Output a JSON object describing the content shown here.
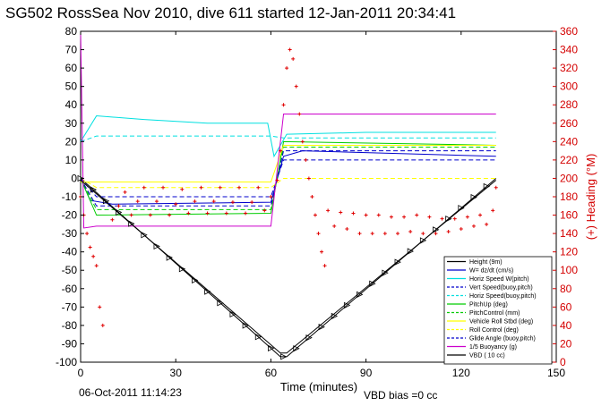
{
  "chart_data": {
    "type": "line",
    "title": "SG502 RossSea Nov 2010, dive 611 started 12-Jan-2011 20:34:41",
    "xlabel": "Time (minutes)",
    "ylabel_right": "(+) Heading (°M)",
    "xlim": [
      0,
      150
    ],
    "ylim_left": [
      -100,
      80
    ],
    "ylim_right": [
      0,
      360
    ],
    "x_ticks": [
      "0",
      "30",
      "60",
      "90",
      "120",
      "150"
    ],
    "y_ticks_left": [
      "80",
      "70",
      "60",
      "50",
      "40",
      "30",
      "20",
      "10",
      "0",
      "-10",
      "-20",
      "-30",
      "-40",
      "-50",
      "-60",
      "-70",
      "-80",
      "-90",
      "-100"
    ],
    "y_ticks_right": [
      "360",
      "340",
      "320",
      "300",
      "280",
      "260",
      "240",
      "220",
      "200",
      "180",
      "160",
      "140",
      "120",
      "100",
      "80",
      "60",
      "40",
      "20",
      "0"
    ],
    "footer_date": "06-Oct-2011 11:14:23",
    "footer_vbd": "VBD bias =0 cc",
    "legend": [
      {
        "label": "Height (9m)",
        "color": "#000000",
        "dash": false
      },
      {
        "label": "W= dz/dt (cm/s)",
        "color": "#0000cc",
        "dash": false
      },
      {
        "label": "Horiz Speed W(pitch)",
        "color": "#00e0e0",
        "dash": false
      },
      {
        "label": "Vert Speed(buoy,pitch)",
        "color": "#0000cc",
        "dash": true
      },
      {
        "label": "Horiz Speed(buoy,pitch)",
        "color": "#00e0e0",
        "dash": true
      },
      {
        "label": "PitchUp (deg)",
        "color": "#00cc00",
        "dash": false
      },
      {
        "label": "PitchControl (mm)",
        "color": "#00cc00",
        "dash": true
      },
      {
        "label": "Vehicle Roll Stbd (deg)",
        "color": "#ffff00",
        "dash": false
      },
      {
        "label": "Roll Control (deg)",
        "color": "#ffff00",
        "dash": true
      },
      {
        "label": "Glide Angle (buoy,pitch)",
        "color": "#0000cc",
        "dash": true
      },
      {
        "label": "1/5 Buoyancy (g)",
        "color": "#cc00cc",
        "dash": false
      },
      {
        "label": "VBD ( 10 cc)",
        "color": "#000000",
        "dash": false
      }
    ],
    "series": [
      {
        "name": "Height (9m)",
        "color": "#000000",
        "x": [
          0,
          63,
          65,
          131
        ],
        "y": [
          0,
          -97,
          -97,
          0
        ]
      },
      {
        "name": "W= dz/dt (cm/s)",
        "color": "#0000cc",
        "x": [
          0,
          3,
          10,
          60,
          64,
          70,
          131
        ],
        "y": [
          0,
          -12,
          -14,
          -13,
          12,
          15,
          12
        ]
      },
      {
        "name": "Horiz Speed W(pitch)",
        "color": "#00e0e0",
        "x": [
          0,
          5,
          20,
          40,
          59,
          61,
          65,
          90,
          131
        ],
        "y": [
          20,
          34,
          32,
          30,
          30,
          12,
          24,
          25,
          25
        ]
      },
      {
        "name": "Vert Speed(buoy,pitch)",
        "color": "#0000cc",
        "dash": true,
        "x": [
          0,
          5,
          60,
          64,
          131
        ],
        "y": [
          0,
          -10,
          -10,
          10,
          10
        ]
      },
      {
        "name": "Horiz Speed(buoy,pitch)",
        "color": "#00e0e0",
        "dash": true,
        "x": [
          0,
          5,
          60,
          64,
          131
        ],
        "y": [
          20,
          23,
          23,
          22,
          22
        ]
      },
      {
        "name": "PitchUp (deg)",
        "color": "#00cc00",
        "x": [
          0,
          5,
          60,
          64,
          131
        ],
        "y": [
          0,
          -20,
          -19,
          20,
          18
        ]
      },
      {
        "name": "PitchControl (mm)",
        "color": "#00cc00",
        "dash": true,
        "x": [
          0,
          5,
          60,
          64,
          131
        ],
        "y": [
          0,
          -17,
          -17,
          17,
          17
        ]
      },
      {
        "name": "Vehicle Roll Stbd (deg)",
        "color": "#ffff00",
        "x": [
          0,
          5,
          60,
          64,
          131
        ],
        "y": [
          -2,
          -2,
          -2,
          18,
          18
        ]
      },
      {
        "name": "Roll Control (deg)",
        "color": "#ffff00",
        "dash": true,
        "x": [
          0,
          5,
          60,
          64,
          131
        ],
        "y": [
          0,
          -5,
          -5,
          0,
          0
        ]
      },
      {
        "name": "Glide Angle (buoy,pitch)",
        "color": "#0000cc",
        "dash": true,
        "x": [
          0,
          5,
          60,
          64,
          131
        ],
        "y": [
          0,
          -15,
          -15,
          15,
          15
        ]
      },
      {
        "name": "1/5 Buoyancy (g)",
        "color": "#cc00cc",
        "x": [
          0,
          1,
          5,
          60,
          64,
          131
        ],
        "y": [
          80,
          -27,
          -26,
          -26,
          35,
          35
        ]
      },
      {
        "name": "VBD ( 10 cc)",
        "color": "#000000",
        "x": [
          0,
          63,
          65,
          131
        ],
        "y": [
          -1,
          -95,
          -95,
          -1
        ]
      }
    ],
    "heading_points": [
      [
        0,
        180
      ],
      [
        1,
        160
      ],
      [
        2,
        140
      ],
      [
        3,
        125
      ],
      [
        4,
        115
      ],
      [
        5,
        105
      ],
      [
        6,
        60
      ],
      [
        7,
        40
      ],
      [
        10,
        155
      ],
      [
        12,
        170
      ],
      [
        14,
        185
      ],
      [
        16,
        160
      ],
      [
        18,
        175
      ],
      [
        20,
        190
      ],
      [
        22,
        160
      ],
      [
        24,
        175
      ],
      [
        26,
        190
      ],
      [
        28,
        160
      ],
      [
        30,
        172
      ],
      [
        32,
        188
      ],
      [
        34,
        162
      ],
      [
        36,
        175
      ],
      [
        38,
        190
      ],
      [
        40,
        162
      ],
      [
        42,
        175
      ],
      [
        44,
        190
      ],
      [
        46,
        162
      ],
      [
        48,
        174
      ],
      [
        50,
        190
      ],
      [
        52,
        162
      ],
      [
        54,
        174
      ],
      [
        56,
        190
      ],
      [
        58,
        165
      ],
      [
        60,
        180
      ],
      [
        62,
        198
      ],
      [
        63,
        230
      ],
      [
        64,
        280
      ],
      [
        65,
        320
      ],
      [
        66,
        340
      ],
      [
        67,
        330
      ],
      [
        68,
        300
      ],
      [
        69,
        270
      ],
      [
        70,
        240
      ],
      [
        71,
        220
      ],
      [
        72,
        200
      ],
      [
        73,
        180
      ],
      [
        74,
        160
      ],
      [
        75,
        140
      ],
      [
        76,
        120
      ],
      [
        77,
        105
      ],
      [
        78,
        165
      ],
      [
        80,
        148
      ],
      [
        82,
        163
      ],
      [
        84,
        145
      ],
      [
        86,
        162
      ],
      [
        88,
        140
      ],
      [
        90,
        160
      ],
      [
        92,
        140
      ],
      [
        94,
        160
      ],
      [
        96,
        140
      ],
      [
        98,
        158
      ],
      [
        100,
        140
      ],
      [
        102,
        158
      ],
      [
        104,
        142
      ],
      [
        106,
        160
      ],
      [
        108,
        140
      ],
      [
        110,
        158
      ],
      [
        112,
        140
      ],
      [
        114,
        156
      ],
      [
        116,
        142
      ],
      [
        118,
        156
      ],
      [
        120,
        145
      ],
      [
        122,
        158
      ],
      [
        124,
        148
      ],
      [
        126,
        160
      ],
      [
        128,
        150
      ],
      [
        130,
        165
      ],
      [
        131,
        190
      ]
    ]
  }
}
